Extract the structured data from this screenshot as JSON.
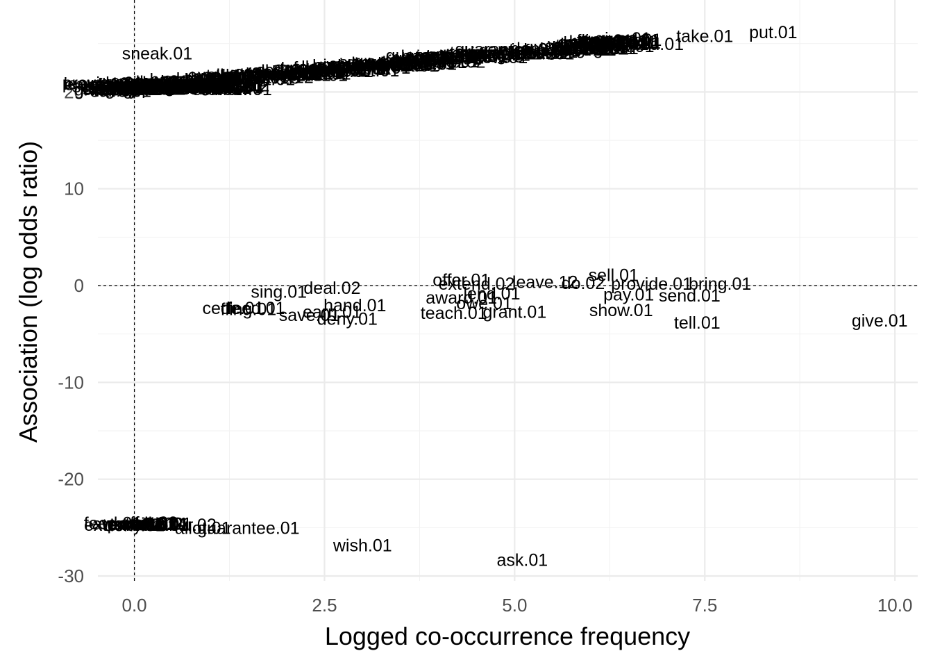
{
  "chart_data": {
    "type": "scatter",
    "title": "",
    "xlabel": "Logged co-occurrence frequency",
    "ylabel": "Association (log odds ratio)",
    "xlim": [
      -0.48,
      10.3
    ],
    "ylim": [
      -30.5,
      29.5
    ],
    "x_ticks": [
      0.0,
      2.5,
      5.0,
      7.5,
      10.0
    ],
    "x_tick_labels": [
      "0.0",
      "2.5",
      "5.0",
      "7.5",
      "10.0"
    ],
    "y_ticks": [
      -30,
      -20,
      -10,
      0,
      10,
      20
    ],
    "y_tick_labels": [
      "-30",
      "-20",
      "-10",
      "0",
      "10",
      "20"
    ],
    "grid": true,
    "reference_lines": {
      "x": 0,
      "y": 0,
      "style": "dashed"
    },
    "points": [
      {
        "label": "put.01",
        "x": 8.4,
        "y": 26.2
      },
      {
        "label": "take.01",
        "x": 7.5,
        "y": 25.8
      },
      {
        "label": "give.01",
        "x": 9.8,
        "y": -3.6
      },
      {
        "label": "tell.01",
        "x": 7.4,
        "y": -3.8
      },
      {
        "label": "show.01",
        "x": 6.4,
        "y": -2.5
      },
      {
        "label": "send.01",
        "x": 7.3,
        "y": -1.0
      },
      {
        "label": "pay.01",
        "x": 6.5,
        "y": -0.9
      },
      {
        "label": "bring.01",
        "x": 7.7,
        "y": 0.2
      },
      {
        "label": "provide.01",
        "x": 6.8,
        "y": 0.2
      },
      {
        "label": "sell.01",
        "x": 6.3,
        "y": 1.1
      },
      {
        "label": "do.02",
        "x": 5.9,
        "y": 0.3
      },
      {
        "label": "leave.12",
        "x": 5.4,
        "y": 0.4
      },
      {
        "label": "grant.01",
        "x": 5.0,
        "y": -2.7
      },
      {
        "label": "teach.01",
        "x": 4.2,
        "y": -2.8
      },
      {
        "label": "owe.01",
        "x": 4.6,
        "y": -1.8
      },
      {
        "label": "lend.01",
        "x": 4.7,
        "y": -0.8
      },
      {
        "label": "award.01",
        "x": 4.3,
        "y": -1.2
      },
      {
        "label": "extend.02",
        "x": 4.5,
        "y": 0.2
      },
      {
        "label": "offer.01",
        "x": 4.3,
        "y": 0.6
      },
      {
        "label": "hand.01",
        "x": 2.9,
        "y": -2.0
      },
      {
        "label": "deal.02",
        "x": 2.6,
        "y": -0.2
      },
      {
        "label": "sing.01",
        "x": 1.9,
        "y": -0.6
      },
      {
        "label": "deny.01",
        "x": 2.8,
        "y": -3.4
      },
      {
        "label": "earn.01",
        "x": 2.6,
        "y": -2.7
      },
      {
        "label": "save.01",
        "x": 2.3,
        "y": -3.0
      },
      {
        "label": "feed.01",
        "x": 1.6,
        "y": -2.3
      },
      {
        "label": "fling.01",
        "x": 1.5,
        "y": -2.4
      },
      {
        "label": "cede.01",
        "x": 1.3,
        "y": -2.3
      },
      {
        "label": "wish.01",
        "x": 3.0,
        "y": -26.8
      },
      {
        "label": "ask.01",
        "x": 5.1,
        "y": -28.3
      },
      {
        "label": "guarantee.01",
        "x": 1.5,
        "y": -25.0
      },
      {
        "label": "allot.01",
        "x": 0.9,
        "y": -25.0
      },
      {
        "label": "offer.02",
        "x": 0.7,
        "y": -24.7
      },
      {
        "label": "email.01",
        "x": 0.1,
        "y": -24.6
      },
      {
        "label": "mail.01",
        "x": 0.2,
        "y": -24.6
      },
      {
        "label": "remit.01",
        "x": 0.3,
        "y": -24.7
      },
      {
        "label": "sneak.01",
        "x": 0.3,
        "y": 24.0
      },
      {
        "label": "hurl.01",
        "x": 1.2,
        "y": 20.6
      },
      {
        "label": "roll.01",
        "x": 0.9,
        "y": 20.7
      }
    ]
  }
}
